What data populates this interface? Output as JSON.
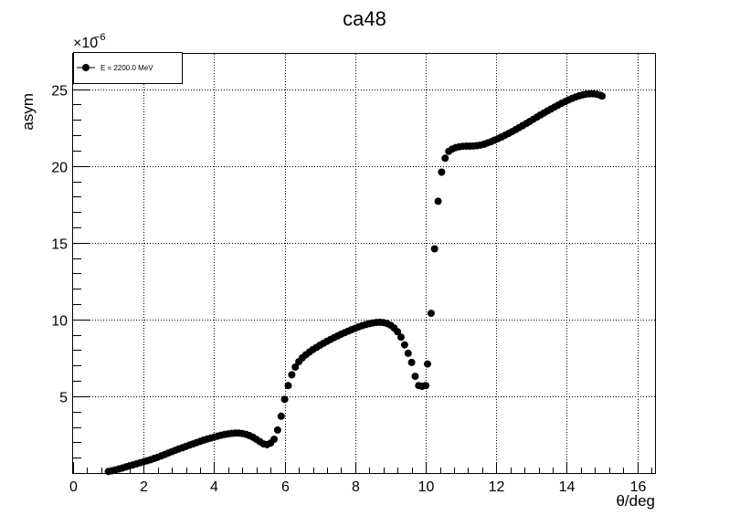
{
  "chart_data": {
    "type": "scatter",
    "title": "ca48",
    "xlabel": "θ/deg",
    "ylabel": "asym",
    "y_exponent_label": "×10",
    "y_exponent_power": "−6",
    "xlim": [
      0,
      16.5
    ],
    "ylim": [
      0,
      27.3
    ],
    "x_major_ticks": [
      0,
      2,
      4,
      6,
      8,
      10,
      12,
      14,
      16
    ],
    "y_major_ticks": [
      5,
      10,
      15,
      20,
      25
    ],
    "x_tick_labels": [
      "0",
      "2",
      "4",
      "6",
      "8",
      "10",
      "12",
      "14",
      "16"
    ],
    "y_tick_labels": [
      "5",
      "10",
      "15",
      "20",
      "25"
    ],
    "grid": true,
    "legend_position": "top-left",
    "marker_color": "#000000",
    "series": [
      {
        "name": "E = 2200.0 MeV",
        "points": [
          [
            1.0,
            0.1
          ],
          [
            1.1,
            0.15
          ],
          [
            1.2,
            0.2
          ],
          [
            1.3,
            0.27
          ],
          [
            1.4,
            0.33
          ],
          [
            1.5,
            0.4
          ],
          [
            1.6,
            0.47
          ],
          [
            1.7,
            0.53
          ],
          [
            1.8,
            0.6
          ],
          [
            1.9,
            0.67
          ],
          [
            2.0,
            0.73
          ],
          [
            2.1,
            0.8
          ],
          [
            2.2,
            0.87
          ],
          [
            2.3,
            0.95
          ],
          [
            2.4,
            1.03
          ],
          [
            2.5,
            1.12
          ],
          [
            2.6,
            1.21
          ],
          [
            2.7,
            1.3
          ],
          [
            2.8,
            1.39
          ],
          [
            2.9,
            1.48
          ],
          [
            3.0,
            1.57
          ],
          [
            3.1,
            1.65
          ],
          [
            3.2,
            1.73
          ],
          [
            3.3,
            1.82
          ],
          [
            3.4,
            1.9
          ],
          [
            3.5,
            1.98
          ],
          [
            3.6,
            2.06
          ],
          [
            3.7,
            2.14
          ],
          [
            3.8,
            2.21
          ],
          [
            3.9,
            2.28
          ],
          [
            4.0,
            2.34
          ],
          [
            4.1,
            2.4
          ],
          [
            4.2,
            2.46
          ],
          [
            4.3,
            2.51
          ],
          [
            4.4,
            2.55
          ],
          [
            4.5,
            2.58
          ],
          [
            4.6,
            2.6
          ],
          [
            4.7,
            2.6
          ],
          [
            4.8,
            2.57
          ],
          [
            4.9,
            2.52
          ],
          [
            5.0,
            2.44
          ],
          [
            5.1,
            2.33
          ],
          [
            5.2,
            2.19
          ],
          [
            5.3,
            2.04
          ],
          [
            5.4,
            1.9
          ],
          [
            5.5,
            1.85
          ],
          [
            5.6,
            1.95
          ],
          [
            5.7,
            2.2
          ],
          [
            5.8,
            2.8
          ],
          [
            5.9,
            3.7
          ],
          [
            6.0,
            4.8
          ],
          [
            6.1,
            5.7
          ],
          [
            6.2,
            6.4
          ],
          [
            6.3,
            6.9
          ],
          [
            6.4,
            7.25
          ],
          [
            6.5,
            7.5
          ],
          [
            6.6,
            7.7
          ],
          [
            6.7,
            7.88
          ],
          [
            6.8,
            8.04
          ],
          [
            6.9,
            8.18
          ],
          [
            7.0,
            8.32
          ],
          [
            7.1,
            8.45
          ],
          [
            7.2,
            8.58
          ],
          [
            7.3,
            8.7
          ],
          [
            7.4,
            8.82
          ],
          [
            7.5,
            8.93
          ],
          [
            7.6,
            9.04
          ],
          [
            7.7,
            9.14
          ],
          [
            7.8,
            9.24
          ],
          [
            7.9,
            9.34
          ],
          [
            8.0,
            9.43
          ],
          [
            8.1,
            9.52
          ],
          [
            8.2,
            9.6
          ],
          [
            8.3,
            9.67
          ],
          [
            8.4,
            9.73
          ],
          [
            8.5,
            9.78
          ],
          [
            8.6,
            9.81
          ],
          [
            8.7,
            9.82
          ],
          [
            8.8,
            9.8
          ],
          [
            8.9,
            9.74
          ],
          [
            9.0,
            9.63
          ],
          [
            9.1,
            9.45
          ],
          [
            9.2,
            9.2
          ],
          [
            9.3,
            8.85
          ],
          [
            9.4,
            8.35
          ],
          [
            9.5,
            7.8
          ],
          [
            9.6,
            7.2
          ],
          [
            9.7,
            6.3
          ],
          [
            9.8,
            5.7
          ],
          [
            9.9,
            5.65
          ],
          [
            10.0,
            5.7
          ],
          [
            10.05,
            7.1
          ],
          [
            10.15,
            10.4
          ],
          [
            10.25,
            14.6
          ],
          [
            10.35,
            17.7
          ],
          [
            10.45,
            19.6
          ],
          [
            10.55,
            20.5
          ],
          [
            10.65,
            20.95
          ],
          [
            10.75,
            21.1
          ],
          [
            10.85,
            21.2
          ],
          [
            10.95,
            21.25
          ],
          [
            11.05,
            21.28
          ],
          [
            11.15,
            21.29
          ],
          [
            11.25,
            21.29
          ],
          [
            11.35,
            21.3
          ],
          [
            11.45,
            21.32
          ],
          [
            11.55,
            21.36
          ],
          [
            11.65,
            21.42
          ],
          [
            11.75,
            21.5
          ],
          [
            11.85,
            21.58
          ],
          [
            11.95,
            21.68
          ],
          [
            12.05,
            21.78
          ],
          [
            12.15,
            21.89
          ],
          [
            12.25,
            22.0
          ],
          [
            12.35,
            22.12
          ],
          [
            12.45,
            22.24
          ],
          [
            12.55,
            22.37
          ],
          [
            12.65,
            22.5
          ],
          [
            12.75,
            22.63
          ],
          [
            12.85,
            22.76
          ],
          [
            12.95,
            22.9
          ],
          [
            13.05,
            23.04
          ],
          [
            13.15,
            23.18
          ],
          [
            13.25,
            23.32
          ],
          [
            13.35,
            23.45
          ],
          [
            13.45,
            23.58
          ],
          [
            13.55,
            23.71
          ],
          [
            13.65,
            23.84
          ],
          [
            13.75,
            23.96
          ],
          [
            13.85,
            24.08
          ],
          [
            13.95,
            24.19
          ],
          [
            14.05,
            24.3
          ],
          [
            14.15,
            24.4
          ],
          [
            14.25,
            24.49
          ],
          [
            14.35,
            24.57
          ],
          [
            14.45,
            24.63
          ],
          [
            14.55,
            24.68
          ],
          [
            14.65,
            24.7
          ],
          [
            14.75,
            24.7
          ],
          [
            14.85,
            24.67
          ],
          [
            14.95,
            24.6
          ],
          [
            15.0,
            24.55
          ]
        ]
      }
    ]
  }
}
